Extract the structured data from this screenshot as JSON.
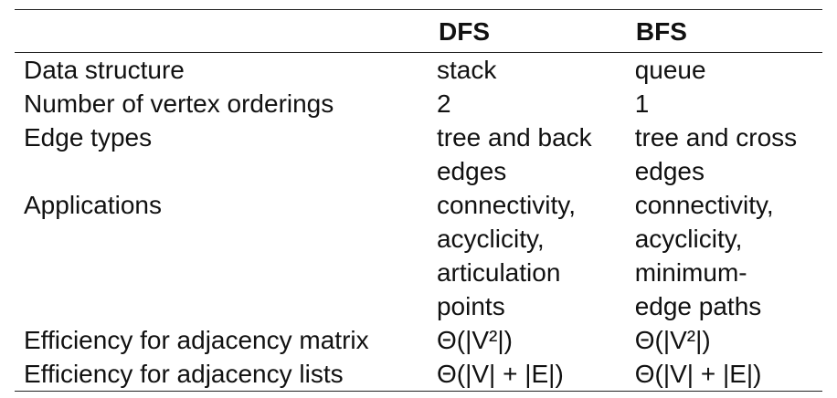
{
  "table": {
    "headers": [
      "",
      "DFS",
      "BFS"
    ],
    "rows": [
      {
        "label": "Data structure",
        "dfs": [
          "stack"
        ],
        "bfs": [
          "queue"
        ]
      },
      {
        "label": "Number of vertex orderings",
        "dfs": [
          "2"
        ],
        "bfs": [
          "1"
        ]
      },
      {
        "label": "Edge types",
        "dfs": [
          "tree and back",
          "edges"
        ],
        "bfs": [
          "tree and cross",
          "edges"
        ]
      },
      {
        "label": "Applications",
        "dfs": [
          "connectivity,",
          "acyclicity,",
          "articulation",
          "points"
        ],
        "bfs": [
          "connectivity,",
          "acyclicity,",
          "minimum-",
          "edge paths"
        ]
      },
      {
        "label": "Efficiency for adjacency matrix",
        "dfs": [
          "Θ(|V²|)"
        ],
        "bfs": [
          "Θ(|V²|)"
        ]
      },
      {
        "label": "Efficiency for adjacency lists",
        "dfs": [
          "Θ(|V| + |E|)"
        ],
        "bfs": [
          "Θ(|V| + |E|)"
        ]
      }
    ]
  }
}
